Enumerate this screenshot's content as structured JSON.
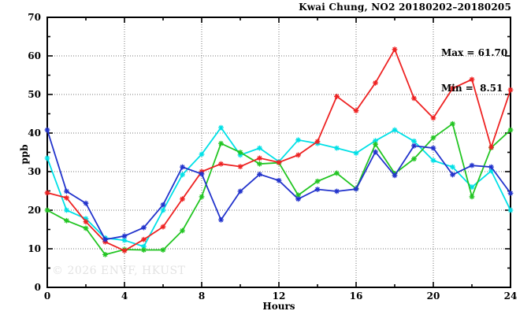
{
  "title": "Kwai Chung, NO2 20180202–20180205",
  "stats": {
    "max_label": "Max = 61.70",
    "min_label": "Min =  8.51"
  },
  "watermark": "© 2026 ENVF, HKUST",
  "chart_data": {
    "type": "line",
    "title": "Kwai Chung, NO2 20180202–20180205",
    "xlabel": "Hours",
    "ylabel": "ppb",
    "xlim": [
      0,
      24
    ],
    "ylim": [
      0,
      70
    ],
    "x_major_ticks": [
      0,
      4,
      8,
      12,
      16,
      20,
      24
    ],
    "x_minor_step": 2,
    "y_major_ticks": [
      0,
      10,
      20,
      30,
      40,
      50,
      60,
      70
    ],
    "y_minor_step": 5,
    "grid": "dotted on major ticks",
    "legend_position": "none",
    "max_value": 61.7,
    "min_value": 8.51,
    "x": [
      0,
      1,
      2,
      3,
      4,
      5,
      6,
      7,
      8,
      9,
      10,
      11,
      12,
      13,
      14,
      15,
      16,
      17,
      18,
      19,
      20,
      21,
      22,
      23,
      24
    ],
    "series": [
      {
        "name": "cyan",
        "color": "#00e0e6",
        "values": [
          33.5,
          20.0,
          17.8,
          12.8,
          12.2,
          10.6,
          20.0,
          29.2,
          34.5,
          41.4,
          34.3,
          36.1,
          32.6,
          38.2,
          37.3,
          36.1,
          34.8,
          38.0,
          40.8,
          37.9,
          32.9,
          31.2,
          26.0,
          30.2,
          20.0
        ]
      },
      {
        "name": "green",
        "color": "#22c522",
        "values": [
          20.0,
          17.3,
          15.3,
          8.5,
          9.8,
          9.7,
          9.7,
          14.7,
          23.5,
          37.3,
          35.0,
          32.0,
          32.3,
          23.9,
          27.5,
          29.6,
          25.6,
          37.1,
          29.5,
          33.3,
          38.8,
          42.4,
          23.5,
          36.2,
          40.8
        ]
      },
      {
        "name": "red",
        "color": "#ee2222",
        "values": [
          24.5,
          23.2,
          17.0,
          11.8,
          9.5,
          12.4,
          15.7,
          22.9,
          30.0,
          32.0,
          31.3,
          33.5,
          32.4,
          34.3,
          37.8,
          49.5,
          45.8,
          53.0,
          61.7,
          49.0,
          43.9,
          51.6,
          53.9,
          36.3,
          51.2
        ]
      },
      {
        "name": "blue",
        "color": "#2233cc",
        "values": [
          40.8,
          24.9,
          21.8,
          12.4,
          13.3,
          15.5,
          21.4,
          31.2,
          29.4,
          17.5,
          24.9,
          29.3,
          27.7,
          22.9,
          25.4,
          24.9,
          25.5,
          35.1,
          29.0,
          36.7,
          36.1,
          29.2,
          31.6,
          31.2,
          24.4
        ]
      }
    ]
  }
}
